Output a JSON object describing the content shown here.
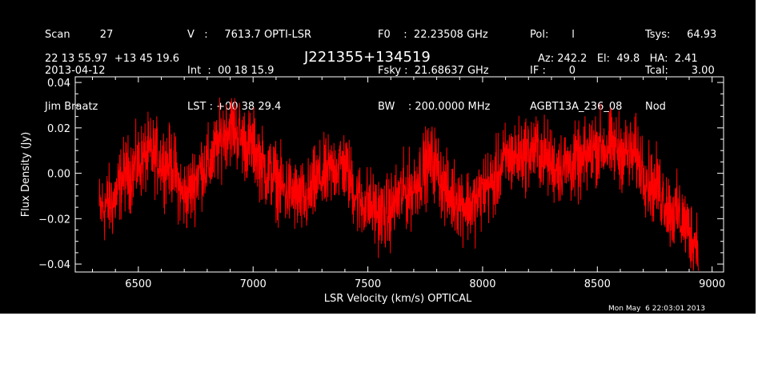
{
  "header": {
    "col1": [
      "Scan         27",
      "2013-04-12",
      "Jim Braatz"
    ],
    "col2": [
      "V   :     7613.7 OPTI-LSR",
      "Int  :  00 18 15.9",
      "LST : +00 38 29.4"
    ],
    "col3": [
      "F0    :  22.23508 GHz",
      "Fsky :  21.68637 GHz",
      "BW    : 200.0000 MHz"
    ],
    "col4": [
      "Pol:       l",
      "IF :       0",
      "AGBT13A_236_08"
    ],
    "col5": [
      "Tsys:     64.93",
      "Tcal:       3.00",
      "Nod"
    ],
    "coords": "22 13 55.97  +13 45 19.6",
    "source": "J221355+134519",
    "azelha": "Az: 242.2   El:  49.8   HA:  2.41"
  },
  "timestamp": "Mon May  6 22:03:01 2013",
  "colors": {
    "background": "#000000",
    "foreground": "#ffffff",
    "series": "#ff0000"
  },
  "chart_data": {
    "type": "line",
    "xlabel": "LSR Velocity (km/s) OPTICAL",
    "ylabel": "Flux Density (Jy)",
    "xlim": [
      6330,
      8940
    ],
    "ylim": [
      -0.043,
      0.041
    ],
    "xticks": [
      "6500",
      "7000",
      "7500",
      "8000",
      "8500",
      "9000"
    ],
    "yticks": [
      "0.04",
      "0.02",
      "0.00",
      "−0.02",
      "−0.04"
    ],
    "grid": false,
    "series": [
      {
        "color": "#ff0000",
        "noise_amplitude": 0.008,
        "x": [
          6330,
          6380,
          6450,
          6550,
          6640,
          6700,
          6790,
          6900,
          6990,
          7070,
          7150,
          7220,
          7300,
          7380,
          7480,
          7570,
          7670,
          7780,
          7860,
          7950,
          8030,
          8120,
          8230,
          8330,
          8420,
          8500,
          8560,
          8660,
          8750,
          8840,
          8940
        ],
        "y": [
          -0.016,
          -0.013,
          0.0,
          0.008,
          0.004,
          -0.01,
          0.003,
          0.02,
          0.012,
          0.0,
          -0.008,
          -0.012,
          -0.002,
          0.004,
          -0.013,
          -0.018,
          -0.008,
          0.005,
          -0.01,
          -0.014,
          -0.005,
          0.007,
          0.01,
          0.003,
          0.004,
          0.012,
          0.011,
          0.008,
          -0.006,
          -0.018,
          -0.03
        ]
      }
    ]
  }
}
